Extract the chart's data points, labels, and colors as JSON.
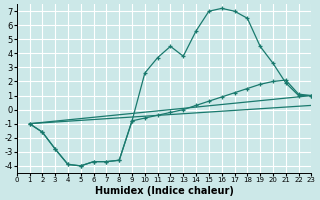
{
  "xlabel": "Humidex (Indice chaleur)",
  "bg_color": "#cce8e8",
  "grid_color": "#ffffff",
  "line_color": "#1a7a6e",
  "xlim": [
    0,
    23
  ],
  "ylim": [
    -4.5,
    7.5
  ],
  "xticks": [
    0,
    1,
    2,
    3,
    4,
    5,
    6,
    7,
    8,
    9,
    10,
    11,
    12,
    13,
    14,
    15,
    16,
    17,
    18,
    19,
    20,
    21,
    22,
    23
  ],
  "yticks": [
    -4,
    -3,
    -2,
    -1,
    0,
    1,
    2,
    3,
    4,
    5,
    6,
    7
  ],
  "curve1_x": [
    1,
    2,
    3,
    4,
    5,
    6,
    7,
    8,
    9,
    10,
    11,
    12,
    13,
    14,
    15,
    16,
    17,
    18,
    19,
    20,
    21,
    22,
    23
  ],
  "curve1_y": [
    -1.0,
    -1.6,
    -2.8,
    -3.9,
    -4.0,
    -3.7,
    -3.7,
    -3.6,
    -0.8,
    2.6,
    3.7,
    4.5,
    3.8,
    5.6,
    7.0,
    7.2,
    7.0,
    6.5,
    4.5,
    3.3,
    1.9,
    1.0,
    1.0
  ],
  "curve2_x": [
    1,
    2,
    3,
    4,
    5,
    6,
    7,
    8,
    9,
    10,
    11,
    12,
    13,
    14,
    15,
    16,
    17,
    18,
    19,
    20,
    21,
    22,
    23
  ],
  "curve2_y": [
    -1.0,
    -1.6,
    -2.8,
    -3.9,
    -4.0,
    -3.7,
    -3.7,
    -3.6,
    -0.8,
    -0.6,
    -0.4,
    -0.2,
    0.0,
    0.3,
    0.6,
    0.9,
    1.2,
    1.5,
    1.8,
    2.0,
    2.1,
    1.1,
    1.0
  ],
  "line1_x": [
    1,
    23
  ],
  "line1_y": [
    -1.0,
    1.0
  ],
  "line2_x": [
    1,
    23
  ],
  "line2_y": [
    -1.0,
    0.3
  ],
  "xlabel_fontsize": 7,
  "tick_fontsize_x": 5,
  "tick_fontsize_y": 6
}
